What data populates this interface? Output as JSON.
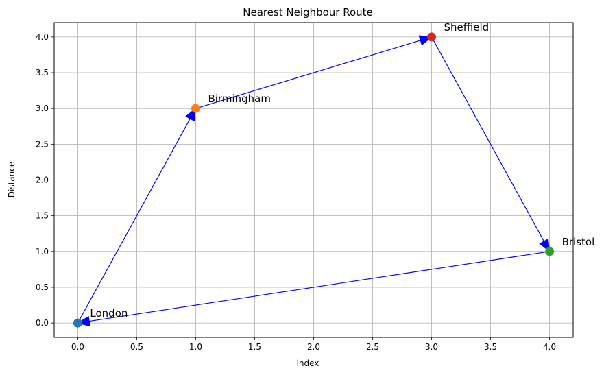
{
  "chart_data": {
    "type": "scatter",
    "title": "Nearest Neighbour Route",
    "xlabel": "index",
    "ylabel": "Distance",
    "xlim": [
      -0.2,
      4.2
    ],
    "ylim": [
      -0.2,
      4.2
    ],
    "xticks": [
      0.0,
      0.5,
      1.0,
      1.5,
      2.0,
      2.5,
      3.0,
      3.5,
      4.0
    ],
    "yticks": [
      0.0,
      0.5,
      1.0,
      1.5,
      2.0,
      2.5,
      3.0,
      3.5,
      4.0
    ],
    "xtick_labels": [
      "0.0",
      "0.5",
      "1.0",
      "1.5",
      "2.0",
      "2.5",
      "3.0",
      "3.5",
      "4.0"
    ],
    "ytick_labels": [
      "0.0",
      "0.5",
      "1.0",
      "1.5",
      "2.0",
      "2.5",
      "3.0",
      "3.5",
      "4.0"
    ],
    "grid": true,
    "points": [
      {
        "label": "London",
        "x": 0,
        "y": 0,
        "color": "#1f77b4"
      },
      {
        "label": "Birmingham",
        "x": 1,
        "y": 3,
        "color": "#ff7f0e"
      },
      {
        "label": "Bristol",
        "x": 4,
        "y": 1,
        "color": "#2ca02c"
      },
      {
        "label": "Sheffield",
        "x": 3,
        "y": 4,
        "color": "#d62728"
      }
    ],
    "route": [
      {
        "from": "London",
        "to": "Birmingham"
      },
      {
        "from": "Birmingham",
        "to": "Sheffield"
      },
      {
        "from": "Sheffield",
        "to": "Bristol"
      },
      {
        "from": "Bristol",
        "to": "London"
      }
    ],
    "route_color": "#0000ff"
  }
}
